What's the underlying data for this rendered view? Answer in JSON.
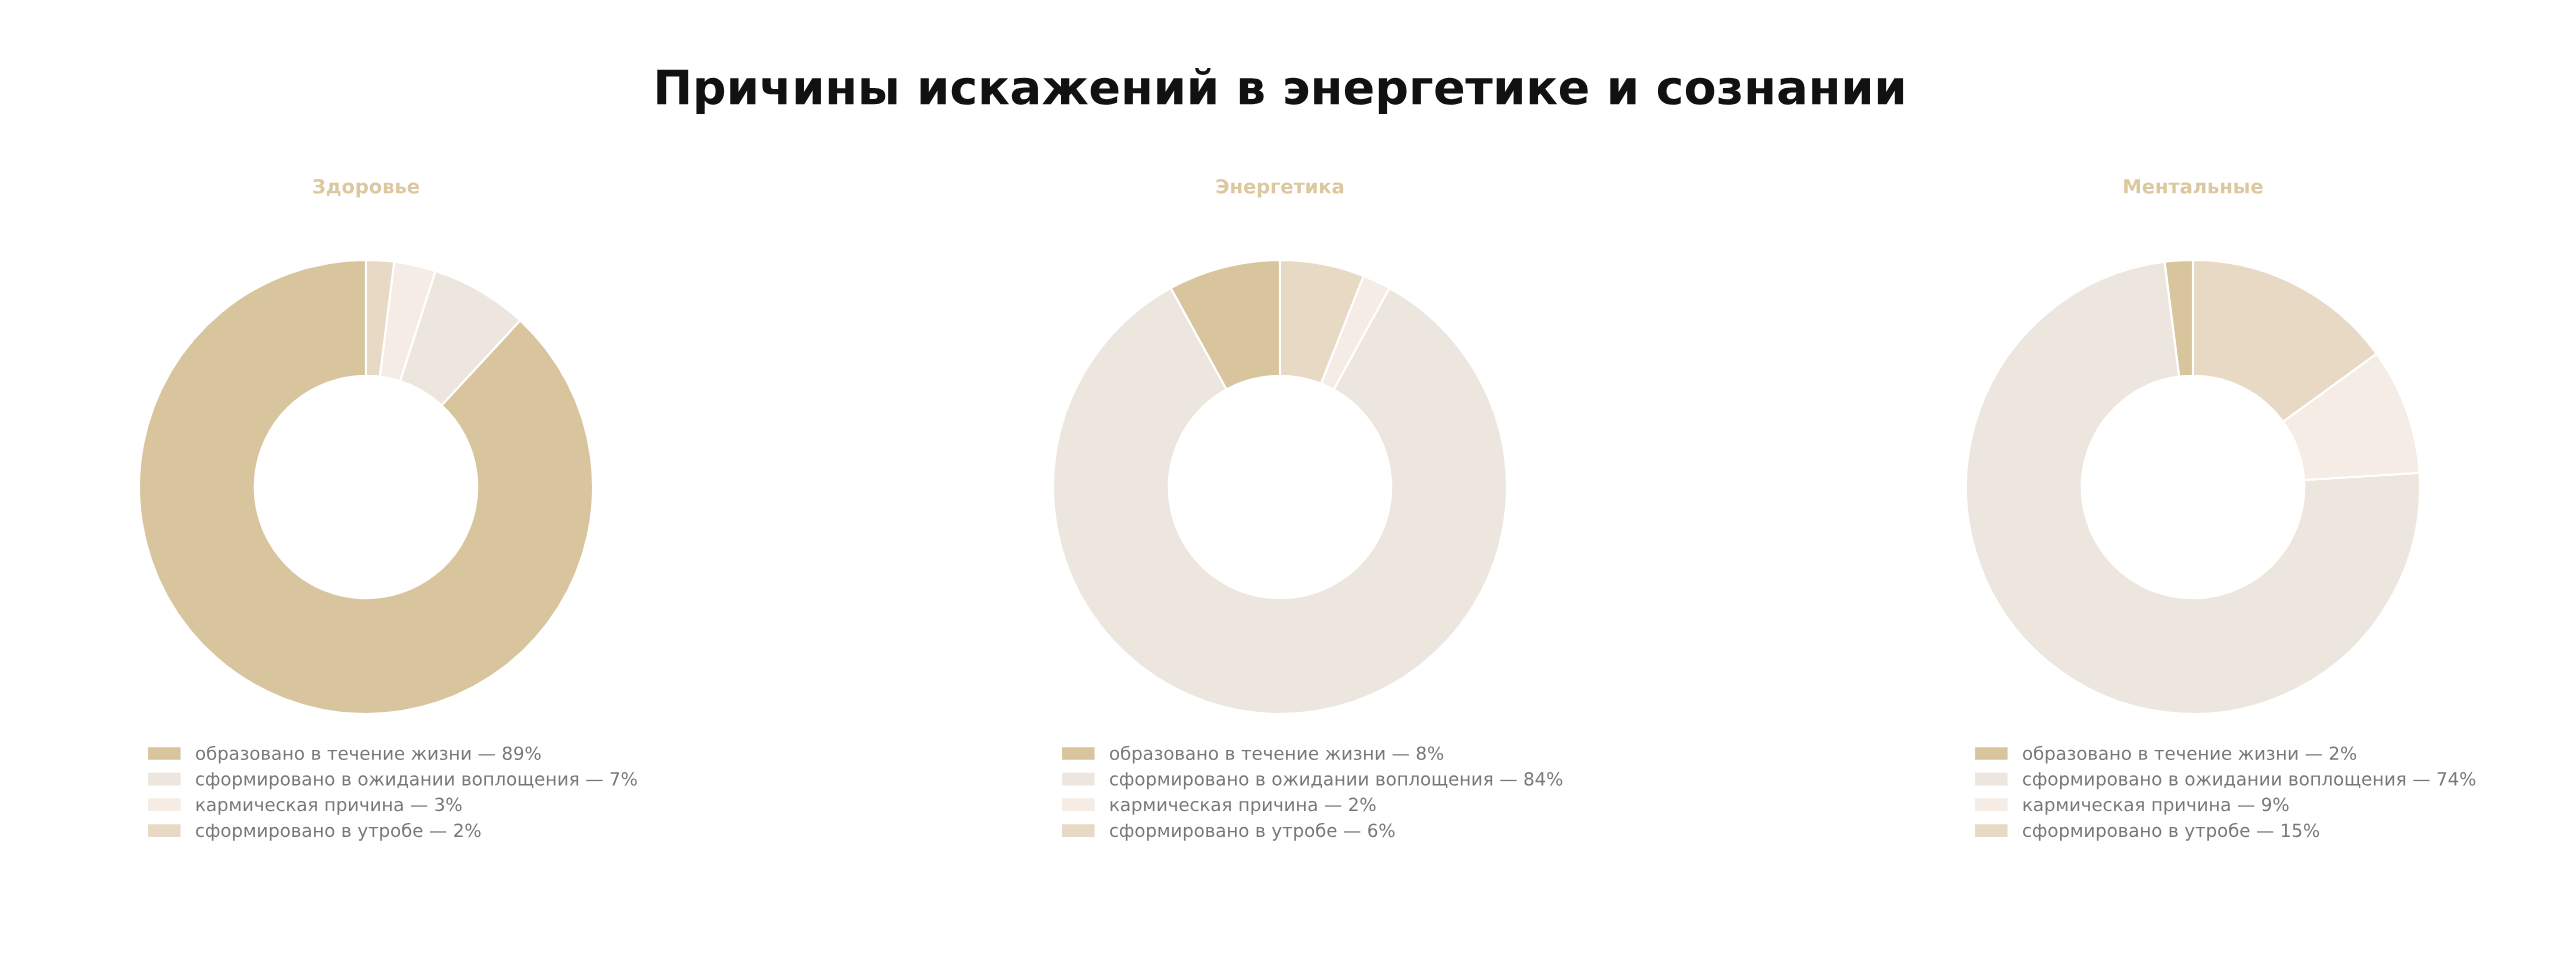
{
  "chart_data": [
    {
      "type": "donut",
      "title": "Здоровье",
      "annotations": [
        "Причины искажений в энергетике и сознании"
      ],
      "categories": [
        "образовано в течение жизни — 89%",
        "сформировано в ожидании воплощения — 7%",
        "кармическая причина — 3%",
        "сформировано в утробе — 2%"
      ],
      "values": [
        89,
        7,
        3,
        2
      ],
      "colors": [
        "#d8c59d",
        "#ede6de",
        "#f4ece5",
        "#e7d9c4"
      ],
      "legend": "bottom"
    },
    {
      "type": "donut",
      "title": "Энергетика",
      "categories": [
        "образовано в течение жизни — 8%",
        "сформировано в ожидании воплощения — 84%",
        "кармическая причина — 2%",
        "сформировано в утробе — 6%"
      ],
      "values": [
        8,
        84,
        2,
        6
      ],
      "colors": [
        "#d8c59d",
        "#ede6de",
        "#f4ece5",
        "#e7d9c4"
      ],
      "legend": "bottom"
    },
    {
      "type": "donut",
      "title": "Ментальные",
      "categories": [
        "образовано в течение жизни — 2%",
        "сформировано в ожидании воплощения — 74%",
        "кармическая причина — 9%",
        "сформировано в утробе — 15%"
      ],
      "values": [
        2,
        74,
        9,
        15
      ],
      "colors": [
        "#d8c59d",
        "#ede6de",
        "#f4ece5",
        "#e7d9c4"
      ],
      "legend": "bottom"
    }
  ]
}
